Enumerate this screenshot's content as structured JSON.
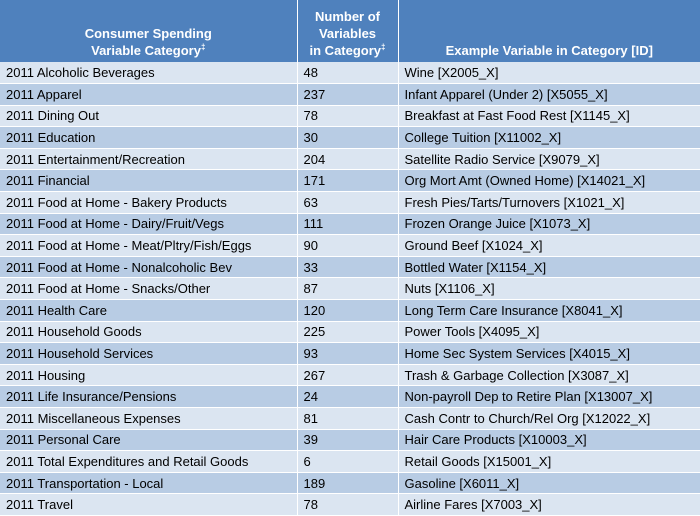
{
  "header": {
    "col1_line1": "Consumer Spending",
    "col1_line2": "Variable Category",
    "col2_line1": "Number of",
    "col2_line2": "Variables",
    "col2_line3": "in Category",
    "col3": "Example Variable in Category [ID]",
    "dagger": "‡"
  },
  "rows": [
    {
      "category": "2011 Alcoholic Beverages",
      "count": "48",
      "example": "Wine [X2005_X]"
    },
    {
      "category": "2011 Apparel",
      "count": "237",
      "example": "Infant Apparel (Under 2) [X5055_X]"
    },
    {
      "category": "2011 Dining Out",
      "count": "78",
      "example": "Breakfast at Fast Food Rest [X1145_X]"
    },
    {
      "category": "2011 Education",
      "count": "30",
      "example": "College Tuition [X11002_X]"
    },
    {
      "category": "2011 Entertainment/Recreation",
      "count": "204",
      "example": "Satellite Radio Service [X9079_X]"
    },
    {
      "category": "2011 Financial",
      "count": "171",
      "example": "Org Mort Amt (Owned Home) [X14021_X]"
    },
    {
      "category": "2011 Food at Home - Bakery Products",
      "count": "63",
      "example": "Fresh Pies/Tarts/Turnovers [X1021_X]"
    },
    {
      "category": "2011 Food at Home - Dairy/Fruit/Vegs",
      "count": "111",
      "example": "Frozen Orange Juice [X1073_X]"
    },
    {
      "category": "2011 Food at Home - Meat/Pltry/Fish/Eggs",
      "count": "90",
      "example": "Ground Beef [X1024_X]"
    },
    {
      "category": "2011 Food at Home - Nonalcoholic Bev",
      "count": "33",
      "example": "Bottled Water [X1154_X]"
    },
    {
      "category": "2011 Food at Home - Snacks/Other",
      "count": "87",
      "example": "Nuts [X1106_X]"
    },
    {
      "category": "2011 Health Care",
      "count": "120",
      "example": "Long Term Care Insurance [X8041_X]"
    },
    {
      "category": "2011 Household Goods",
      "count": "225",
      "example": "Power Tools [X4095_X]"
    },
    {
      "category": "2011 Household Services",
      "count": "93",
      "example": "Home Sec System Services [X4015_X]"
    },
    {
      "category": "2011 Housing",
      "count": "267",
      "example": "Trash & Garbage Collection [X3087_X]"
    },
    {
      "category": "2011 Life Insurance/Pensions",
      "count": "24",
      "example": "Non-payroll Dep to Retire Plan [X13007_X]"
    },
    {
      "category": "2011 Miscellaneous Expenses",
      "count": "81",
      "example": "Cash Contr to Church/Rel Org [X12022_X]"
    },
    {
      "category": "2011 Personal Care",
      "count": "39",
      "example": "Hair Care Products [X10003_X]"
    },
    {
      "category": "2011 Total Expenditures and Retail Goods",
      "count": "6",
      "example": "Retail Goods [X15001_X]"
    },
    {
      "category": "2011 Transportation - Local",
      "count": "189",
      "example": "Gasoline [X6011_X]"
    },
    {
      "category": "2011 Travel",
      "count": "78",
      "example": "Airline Fares [X7003_X]"
    }
  ]
}
